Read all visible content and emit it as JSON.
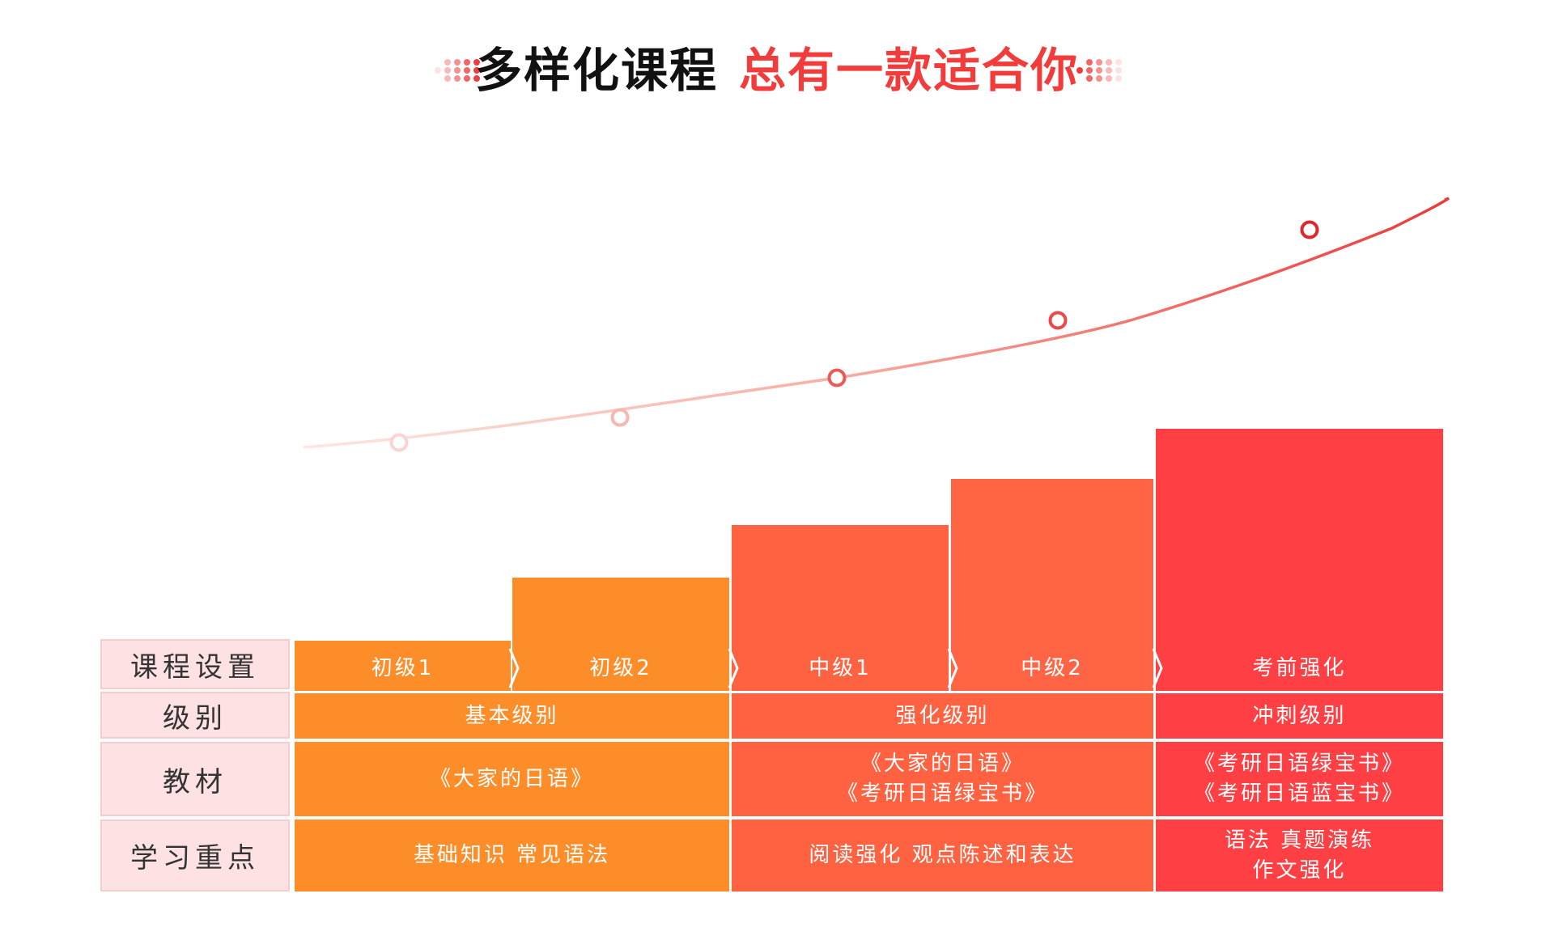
{
  "title": {
    "part1": "多样化课程",
    "part2": "总有一款适合你"
  },
  "colors": {
    "title_dark": "#111111",
    "title_red": "#f23c3c",
    "basic": "#fd8d29",
    "intermediate": "#ff6240",
    "intermediate2": "#ff6544",
    "exam": "#fe3f43",
    "label_bg": "#fde1e3",
    "curve_light": "#fde0dc",
    "curve_dark": "#ea3a39"
  },
  "row_labels": {
    "course": "课程设置",
    "level": "级别",
    "textbook": "教材",
    "focus": "学习重点"
  },
  "courses": [
    {
      "name": "初级1"
    },
    {
      "name": "初级2"
    },
    {
      "name": "中级1"
    },
    {
      "name": "中级2"
    },
    {
      "name": "考前强化"
    }
  ],
  "groups": [
    {
      "level": "基本级别",
      "textbook": "《大家的日语》",
      "focus": "基础知识  常见语法"
    },
    {
      "level": "强化级别",
      "textbook": "《大家的日语》\n《考研日语绿宝书》",
      "focus": "阅读强化  观点陈述和表达"
    },
    {
      "level": "冲刺级别",
      "textbook": "《考研日语绿宝书》\n《考研日语蓝宝书》",
      "focus": "语法  真题演练\n作文强化"
    }
  ],
  "progress_markers": {
    "count": 5,
    "icon": "circle-marker-icon"
  }
}
